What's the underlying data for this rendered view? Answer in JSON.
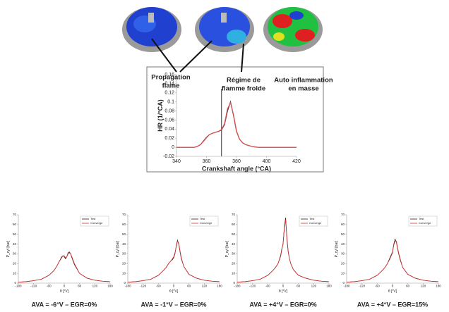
{
  "chart_data": [
    {
      "type": "line",
      "xlabel": "Crankshaft angle (°CA)",
      "ylabel": "HR (1/°CA)",
      "annotations": [
        [
          "Propagation",
          "flame"
        ],
        [
          "Régime de",
          "flamme froide"
        ],
        [
          "Auto inflammation",
          "en masse"
        ]
      ],
      "vline": 370,
      "xlim": [
        340,
        420
      ],
      "xticks": [
        340,
        360,
        380,
        400,
        420
      ],
      "ylim": [
        -0.02,
        0.16
      ],
      "yticks": [
        -0.02,
        0,
        0.02,
        0.04,
        0.06,
        0.08,
        0.1,
        0.12,
        0.14,
        0.16
      ],
      "x": [
        340,
        342,
        344,
        346,
        348,
        350,
        352,
        354,
        356,
        358,
        360,
        362,
        364,
        366,
        368,
        370,
        372,
        374,
        376,
        378,
        380,
        382,
        384,
        386,
        388,
        390,
        392,
        394,
        396,
        398,
        400,
        402,
        404,
        406,
        408,
        410,
        412,
        414,
        416,
        418,
        420
      ],
      "series": [
        {
          "color": "#333333",
          "values": [
            0,
            0,
            0,
            0,
            0,
            0,
            0,
            0.002,
            0.006,
            0.014,
            0.022,
            0.028,
            0.031,
            0.033,
            0.035,
            0.038,
            0.05,
            0.08,
            0.1,
            0.07,
            0.035,
            0.018,
            0.01,
            0.006,
            0.004,
            0.002,
            0.001,
            0,
            0,
            0,
            0,
            0,
            0,
            0,
            0,
            0,
            0,
            0,
            0,
            0,
            0
          ]
        },
        {
          "color": "#e05050",
          "values": [
            0,
            0,
            0,
            0,
            0,
            0,
            0,
            0.002,
            0.006,
            0.013,
            0.021,
            0.028,
            0.031,
            0.033,
            0.035,
            0.039,
            0.052,
            0.085,
            0.098,
            0.072,
            0.036,
            0.018,
            0.01,
            0.006,
            0.004,
            0.002,
            0.001,
            0,
            0,
            0,
            0,
            0,
            0,
            0,
            0,
            0,
            0,
            0,
            0,
            0,
            0
          ]
        }
      ]
    },
    {
      "type": "line",
      "title": "AVA = -6°V – EGR=0%",
      "xlabel": "θ [°V]",
      "ylabel": "P_cyl [bar]",
      "xlim": [
        -180,
        180
      ],
      "xticks": [
        -180,
        -120,
        -60,
        0,
        60,
        120,
        180
      ],
      "ylim": [
        0,
        70
      ],
      "yticks": [
        0,
        10,
        20,
        30,
        40,
        50,
        60,
        70
      ],
      "x": [
        -180,
        -150,
        -120,
        -90,
        -60,
        -40,
        -30,
        -20,
        -10,
        -5,
        0,
        5,
        10,
        15,
        20,
        25,
        30,
        40,
        60,
        90,
        120,
        150,
        180
      ],
      "series": [
        {
          "name": "Test",
          "color": "#222222",
          "values": [
            1,
            1.5,
            2.5,
            4,
            8,
            13,
            17,
            22,
            27,
            28,
            27,
            25,
            27,
            31,
            32,
            30,
            26,
            19,
            10,
            5,
            3,
            2,
            1.5
          ]
        },
        {
          "name": "Converge",
          "color": "#e03030",
          "values": [
            1,
            1.5,
            2.5,
            4,
            8,
            13,
            17,
            22,
            26,
            28,
            28,
            26,
            27,
            30,
            31,
            30,
            27,
            20,
            10,
            5,
            3,
            2,
            1.5
          ]
        }
      ]
    },
    {
      "type": "line",
      "title": "AVA = -1°V – EGR=0%",
      "xlabel": "θ [°V]",
      "ylabel": "P_cyl [bar]",
      "xlim": [
        -180,
        180
      ],
      "xticks": [
        -180,
        -120,
        -60,
        0,
        60,
        120,
        180
      ],
      "ylim": [
        0,
        70
      ],
      "yticks": [
        0,
        10,
        20,
        30,
        40,
        50,
        60,
        70
      ],
      "x": [
        -180,
        -150,
        -120,
        -90,
        -60,
        -40,
        -30,
        -20,
        -10,
        -5,
        0,
        5,
        10,
        15,
        20,
        25,
        30,
        40,
        60,
        90,
        120,
        150,
        180
      ],
      "series": [
        {
          "name": "Test",
          "color": "#222222",
          "values": [
            1,
            1.5,
            2.5,
            4,
            8,
            13,
            16,
            20,
            23,
            24,
            26,
            30,
            38,
            44,
            40,
            32,
            25,
            17,
            9,
            5,
            3,
            2,
            1.5
          ]
        },
        {
          "name": "Converge",
          "color": "#e03030",
          "values": [
            1,
            1.5,
            2.5,
            4,
            8,
            13,
            16,
            20,
            23,
            25,
            27,
            31,
            37,
            43,
            41,
            33,
            26,
            17,
            9,
            5,
            3,
            2,
            1.5
          ]
        }
      ]
    },
    {
      "type": "line",
      "title": "AVA = +4°V – EGR=0%",
      "xlabel": "θ [°V]",
      "ylabel": "P_cyl [bar]",
      "xlim": [
        -180,
        180
      ],
      "xticks": [
        -180,
        -120,
        -60,
        0,
        60,
        120,
        180
      ],
      "ylim": [
        0,
        70
      ],
      "yticks": [
        0,
        10,
        20,
        30,
        40,
        50,
        60,
        70
      ],
      "x": [
        -180,
        -150,
        -120,
        -90,
        -60,
        -40,
        -30,
        -20,
        -10,
        -5,
        0,
        5,
        10,
        15,
        20,
        25,
        30,
        40,
        60,
        90,
        120,
        150,
        180
      ],
      "series": [
        {
          "name": "Test",
          "color": "#222222",
          "values": [
            1,
            1.5,
            2.5,
            4,
            8,
            13,
            16,
            20,
            28,
            35,
            40,
            58,
            67,
            45,
            32,
            25,
            20,
            14,
            8,
            5,
            3,
            2,
            1.5
          ]
        },
        {
          "name": "Converge",
          "color": "#e03030",
          "values": [
            1,
            1.5,
            2.5,
            4,
            8,
            13,
            16,
            20,
            27,
            34,
            41,
            56,
            65,
            47,
            33,
            25,
            20,
            14,
            8,
            5,
            3,
            2,
            1.5
          ]
        }
      ]
    },
    {
      "type": "line",
      "title": "AVA = +4°V – EGR=15%",
      "xlabel": "θ [°V]",
      "ylabel": "P_cyl [bar]",
      "xlim": [
        -180,
        180
      ],
      "xticks": [
        -180,
        -120,
        -60,
        0,
        60,
        120,
        180
      ],
      "ylim": [
        0,
        70
      ],
      "yticks": [
        0,
        10,
        20,
        30,
        40,
        50,
        60,
        70
      ],
      "x": [
        -180,
        -150,
        -120,
        -90,
        -60,
        -40,
        -30,
        -20,
        -10,
        -5,
        0,
        5,
        10,
        15,
        20,
        25,
        30,
        40,
        60,
        90,
        120,
        150,
        180
      ],
      "series": [
        {
          "name": "Test",
          "color": "#222222",
          "values": [
            1,
            1.5,
            2.5,
            4,
            8,
            13,
            16,
            20,
            26,
            29,
            32,
            40,
            45,
            42,
            35,
            29,
            24,
            16,
            9,
            5,
            3,
            2,
            1.5
          ]
        },
        {
          "name": "Converge",
          "color": "#e03030",
          "values": [
            1,
            1.5,
            2.5,
            4,
            8,
            13,
            16,
            20,
            25,
            28,
            31,
            39,
            43,
            43,
            36,
            30,
            25,
            16,
            9,
            5,
            3,
            2,
            1.5
          ]
        }
      ]
    }
  ]
}
